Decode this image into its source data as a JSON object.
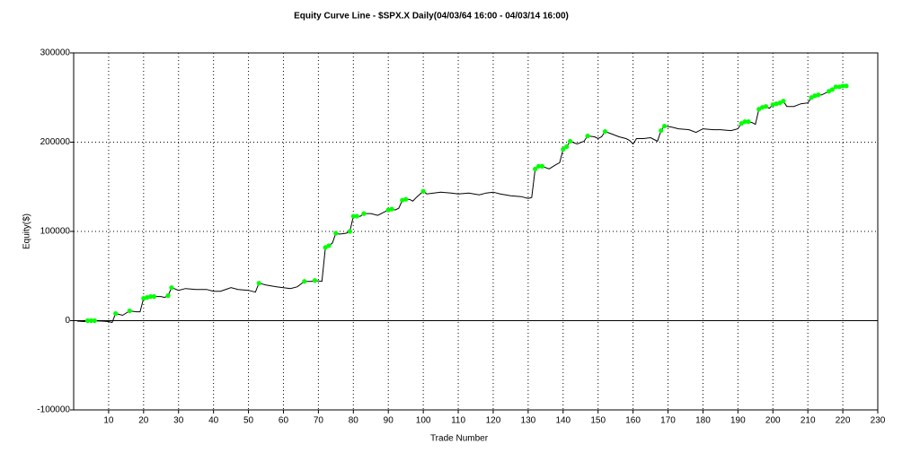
{
  "chart_data": {
    "type": "line",
    "title": "Equity Curve Line - $SPX.X Daily(04/03/64 16:00 - 04/03/14 16:00)",
    "xlabel": "Trade Number",
    "ylabel": "Equity($)",
    "xlim": [
      0,
      230
    ],
    "xticks": [
      10,
      20,
      30,
      40,
      50,
      60,
      70,
      80,
      90,
      100,
      110,
      120,
      130,
      140,
      150,
      160,
      170,
      180,
      190,
      200,
      210,
      220,
      230
    ],
    "ylim": [
      -100000,
      300000
    ],
    "yticks": [
      -100000,
      0,
      100000,
      200000,
      300000
    ],
    "grid": true,
    "series": [
      {
        "color": "#000000",
        "x": [
          1,
          3,
          5,
          8,
          10,
          11,
          12,
          14,
          16,
          18,
          19,
          20,
          21,
          22,
          23,
          25,
          26,
          27,
          28,
          30,
          32,
          35,
          38,
          40,
          42,
          45,
          47,
          50,
          52,
          53,
          55,
          58,
          60,
          62,
          64,
          66,
          68,
          69,
          71,
          72,
          73,
          74,
          75,
          76,
          78,
          79,
          80,
          81,
          82,
          83,
          85,
          87,
          90,
          91,
          92,
          93,
          94,
          95,
          96,
          97,
          98,
          100,
          101,
          103,
          105,
          108,
          110,
          113,
          116,
          118,
          120,
          122,
          125,
          128,
          130,
          131,
          132,
          133,
          134,
          136,
          138,
          139,
          140,
          141,
          142,
          144,
          146,
          147,
          149,
          150,
          151,
          152,
          154,
          156,
          158,
          159,
          160,
          161,
          163,
          165,
          166,
          167,
          168,
          169,
          171,
          173,
          176,
          178,
          180,
          183,
          185,
          188,
          190,
          191,
          192,
          193,
          194,
          195,
          196,
          197,
          198,
          199,
          200,
          201,
          202,
          203,
          204,
          206,
          208,
          210,
          211,
          212,
          213,
          214,
          215,
          216,
          217,
          218,
          219,
          220,
          221
        ],
        "values": [
          -500,
          -1000,
          0,
          -500,
          -1000,
          -2000,
          8000,
          6000,
          11000,
          10000,
          10000,
          25000,
          26000,
          27000,
          27000,
          27000,
          26000,
          28000,
          37000,
          34000,
          36000,
          35000,
          35000,
          33000,
          33000,
          37000,
          35000,
          34000,
          32000,
          42000,
          40000,
          38000,
          37000,
          36000,
          38000,
          44000,
          44000,
          45000,
          44000,
          82000,
          84000,
          87000,
          98000,
          97000,
          98000,
          100000,
          117000,
          117000,
          117000,
          120000,
          120000,
          118000,
          124000,
          125000,
          124000,
          126000,
          135000,
          136000,
          136000,
          134000,
          138000,
          145000,
          142000,
          143000,
          144000,
          143000,
          142000,
          143000,
          141000,
          143000,
          144000,
          142000,
          140000,
          139000,
          137000,
          138000,
          170000,
          173000,
          173000,
          170000,
          175000,
          177000,
          192000,
          195000,
          201000,
          198000,
          201000,
          207000,
          206000,
          204000,
          206000,
          212000,
          209000,
          206000,
          204000,
          202000,
          198000,
          204000,
          204000,
          205000,
          203000,
          201000,
          213000,
          218000,
          217000,
          215000,
          214000,
          211000,
          215000,
          214000,
          214000,
          213000,
          215000,
          221000,
          223000,
          223000,
          222000,
          220000,
          237000,
          239000,
          240000,
          238000,
          242000,
          243000,
          244000,
          246000,
          240000,
          240000,
          243000,
          244000,
          250000,
          252000,
          253000,
          253000,
          255000,
          257000,
          259000,
          262000,
          262000,
          263000,
          263000
        ]
      },
      {
        "color": "#00ff00",
        "marker": true,
        "x": [
          4,
          5,
          6,
          12,
          16,
          20,
          21,
          22,
          23,
          27,
          28,
          53,
          66,
          69,
          72,
          73,
          75,
          79,
          80,
          81,
          83,
          90,
          91,
          94,
          95,
          100,
          132,
          133,
          134,
          140,
          141,
          142,
          147,
          152,
          168,
          169,
          191,
          192,
          193,
          196,
          197,
          198,
          200,
          201,
          202,
          203,
          211,
          212,
          213,
          216,
          217,
          218,
          219,
          220,
          221
        ],
        "values": [
          0,
          0,
          0,
          8000,
          11000,
          25000,
          26000,
          27000,
          27000,
          28000,
          37000,
          42000,
          44000,
          45000,
          82000,
          84000,
          98000,
          100000,
          117000,
          117000,
          120000,
          124000,
          125000,
          135000,
          136000,
          145000,
          170000,
          173000,
          173000,
          192000,
          195000,
          201000,
          207000,
          212000,
          213000,
          218000,
          221000,
          223000,
          223000,
          237000,
          239000,
          240000,
          242000,
          243000,
          244000,
          246000,
          250000,
          252000,
          253000,
          257000,
          259000,
          262000,
          262000,
          263000,
          263000
        ]
      }
    ]
  }
}
